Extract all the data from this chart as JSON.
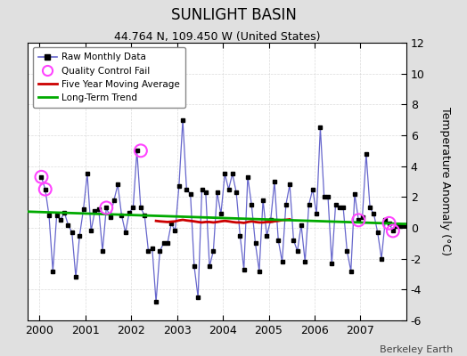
{
  "title": "SUNLIGHT BASIN",
  "subtitle": "44.764 N, 109.450 W (United States)",
  "ylabel": "Temperature Anomaly (°C)",
  "attribution": "Berkeley Earth",
  "ylim": [
    -6,
    12
  ],
  "xlim": [
    1999.75,
    2008.0
  ],
  "yticks": [
    -6,
    -4,
    -2,
    0,
    2,
    4,
    6,
    8,
    10,
    12
  ],
  "xticks": [
    2000,
    2001,
    2002,
    2003,
    2004,
    2005,
    2006,
    2007
  ],
  "fig_facecolor": "#e0e0e0",
  "plot_facecolor": "#ffffff",
  "raw_x": [
    2000.042,
    2000.125,
    2000.208,
    2000.292,
    2000.375,
    2000.458,
    2000.542,
    2000.625,
    2000.708,
    2000.792,
    2000.875,
    2000.958,
    2001.042,
    2001.125,
    2001.208,
    2001.292,
    2001.375,
    2001.458,
    2001.542,
    2001.625,
    2001.708,
    2001.792,
    2001.875,
    2001.958,
    2002.042,
    2002.125,
    2002.208,
    2002.292,
    2002.375,
    2002.458,
    2002.542,
    2002.625,
    2002.708,
    2002.792,
    2002.875,
    2002.958,
    2003.042,
    2003.125,
    2003.208,
    2003.292,
    2003.375,
    2003.458,
    2003.542,
    2003.625,
    2003.708,
    2003.792,
    2003.875,
    2003.958,
    2004.042,
    2004.125,
    2004.208,
    2004.292,
    2004.375,
    2004.458,
    2004.542,
    2004.625,
    2004.708,
    2004.792,
    2004.875,
    2004.958,
    2005.042,
    2005.125,
    2005.208,
    2005.292,
    2005.375,
    2005.458,
    2005.542,
    2005.625,
    2005.708,
    2005.792,
    2005.875,
    2005.958,
    2006.042,
    2006.125,
    2006.208,
    2006.292,
    2006.375,
    2006.458,
    2006.542,
    2006.625,
    2006.708,
    2006.792,
    2006.875,
    2006.958,
    2007.042,
    2007.125,
    2007.208,
    2007.292,
    2007.375,
    2007.458,
    2007.542,
    2007.625,
    2007.708,
    2007.792,
    2007.875,
    2007.958
  ],
  "raw_y": [
    3.3,
    2.5,
    0.8,
    -2.8,
    0.8,
    0.5,
    1.0,
    0.2,
    -0.3,
    -3.2,
    -0.5,
    1.2,
    3.5,
    -0.2,
    1.1,
    1.2,
    -1.5,
    1.3,
    0.7,
    1.8,
    2.8,
    0.8,
    -0.3,
    1.0,
    1.3,
    5.0,
    1.3,
    0.8,
    -1.5,
    -1.3,
    -4.8,
    -1.5,
    -1.0,
    -1.0,
    0.3,
    -0.2,
    2.7,
    7.0,
    2.5,
    2.2,
    -2.5,
    -4.5,
    2.5,
    2.3,
    -2.5,
    -1.5,
    2.3,
    0.9,
    3.5,
    2.5,
    3.5,
    2.3,
    -0.5,
    -2.7,
    3.3,
    1.5,
    -1.0,
    -2.8,
    1.8,
    -0.5,
    0.5,
    3.0,
    -0.8,
    -2.2,
    1.5,
    2.8,
    -0.8,
    -1.5,
    0.2,
    -2.2,
    1.5,
    2.5,
    0.9,
    6.5,
    2.0,
    2.0,
    -2.3,
    1.5,
    1.3,
    1.3,
    -1.5,
    -2.8,
    2.2,
    0.5,
    0.7,
    4.8,
    1.3,
    0.9,
    -0.3,
    -2.0,
    0.5,
    0.3,
    -0.2,
    0.1,
    0.1,
    0.2
  ],
  "qc_fail_x": [
    2000.042,
    2000.125,
    2002.208,
    2001.458,
    2007.625,
    2007.708,
    2006.958
  ],
  "qc_fail_y": [
    3.3,
    2.5,
    5.0,
    1.3,
    0.3,
    -0.2,
    0.5
  ],
  "moving_avg_x": [
    2002.542,
    2002.625,
    2002.708,
    2002.792,
    2002.875,
    2002.958,
    2003.042,
    2003.125,
    2003.208,
    2003.292,
    2003.375,
    2003.458,
    2003.542,
    2003.625,
    2003.708,
    2003.792,
    2003.875,
    2003.958,
    2004.042,
    2004.125,
    2004.208,
    2004.292,
    2004.375,
    2004.458,
    2004.542,
    2004.625,
    2004.708,
    2004.792,
    2004.875,
    2004.958,
    2005.042,
    2005.125,
    2005.208,
    2005.292,
    2005.375,
    2005.458
  ],
  "moving_avg_y": [
    0.45,
    0.42,
    0.4,
    0.38,
    0.4,
    0.42,
    0.48,
    0.52,
    0.48,
    0.45,
    0.42,
    0.38,
    0.35,
    0.38,
    0.38,
    0.35,
    0.38,
    0.42,
    0.45,
    0.42,
    0.38,
    0.35,
    0.35,
    0.32,
    0.38,
    0.42,
    0.38,
    0.35,
    0.35,
    0.38,
    0.38,
    0.42,
    0.45,
    0.5,
    0.52,
    0.55
  ],
  "trend_x": [
    1999.75,
    2008.0
  ],
  "trend_y": [
    1.05,
    0.25
  ],
  "raw_line_color": "#6666cc",
  "raw_marker_color": "#000000",
  "qc_color": "#ff44ff",
  "moving_avg_color": "#cc0000",
  "trend_color": "#00aa00",
  "grid_color": "#cccccc",
  "title_fontsize": 12,
  "subtitle_fontsize": 9,
  "tick_fontsize": 9,
  "ylabel_fontsize": 9
}
